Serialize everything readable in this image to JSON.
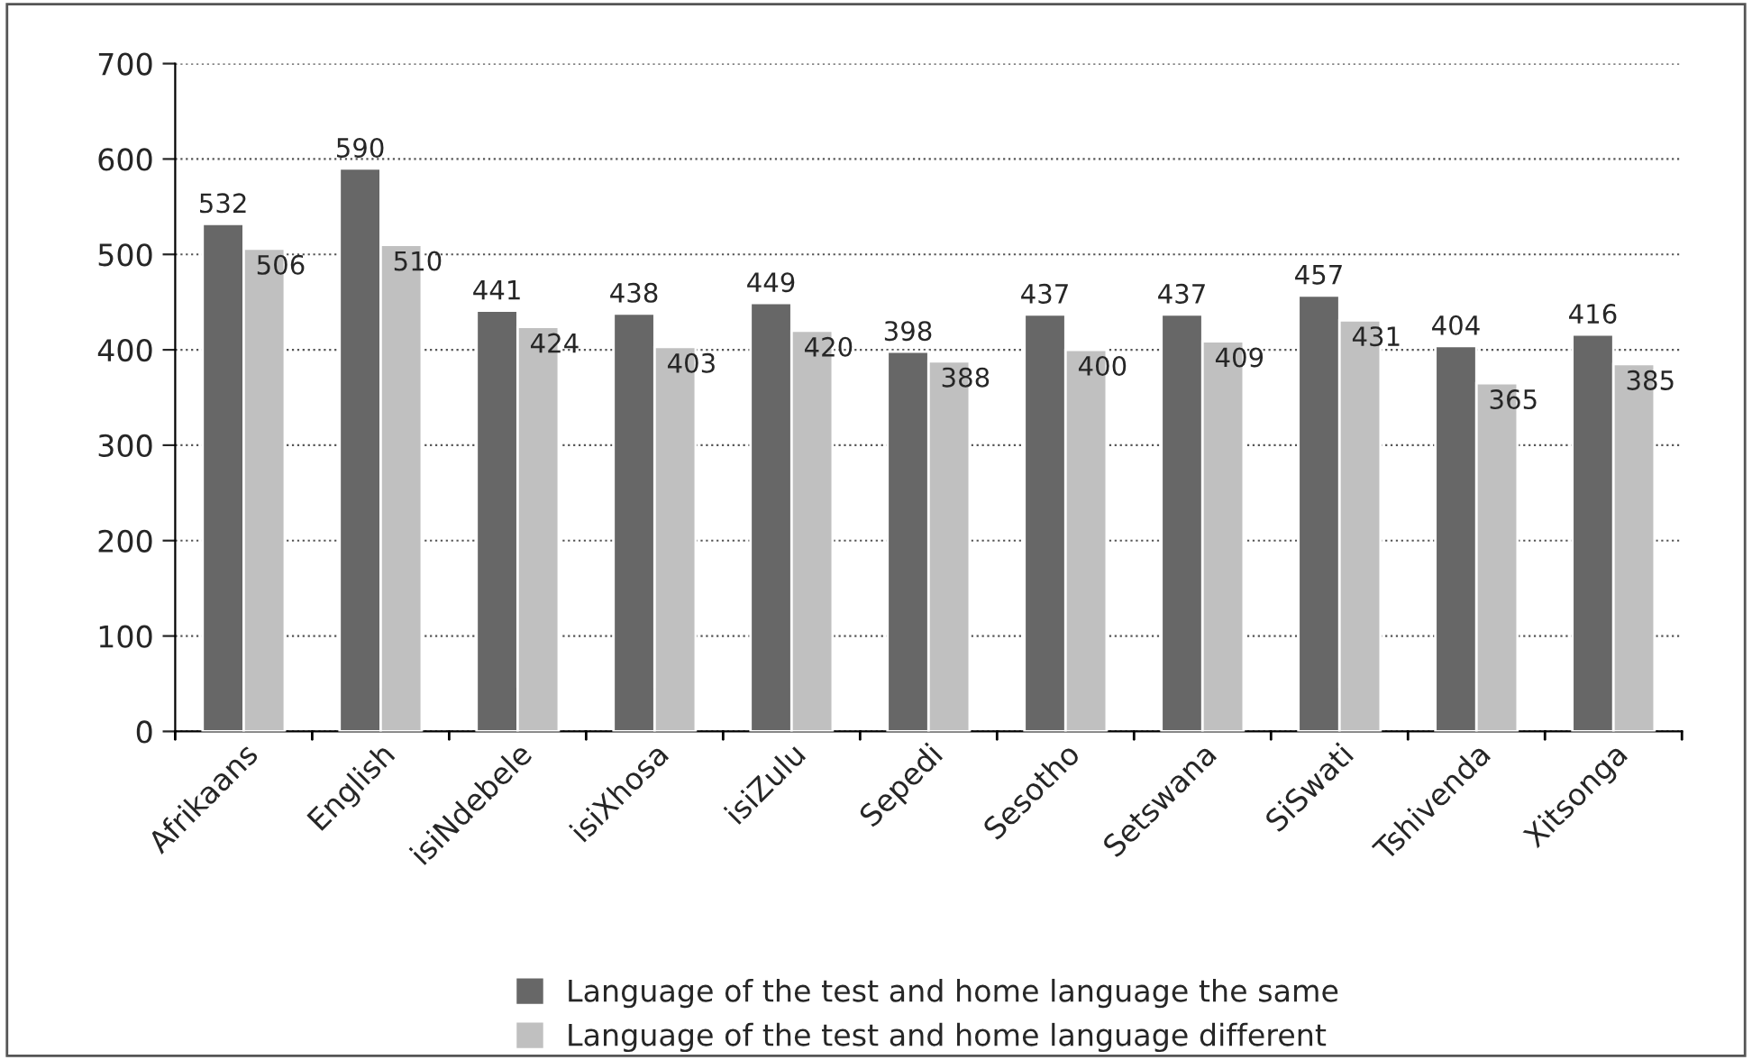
{
  "chart_data": {
    "type": "bar",
    "categories": [
      "Afrikaans",
      "English",
      "isiNdebele",
      "isiXhosa",
      "isiZulu",
      "Sepedi",
      "Sesotho",
      "Setswana",
      "SiSwati",
      "Tshivenda",
      "Xitsonga"
    ],
    "series": [
      {
        "name": "Language of the test and home language the same",
        "color": "#676767",
        "values": [
          532,
          590,
          441,
          438,
          449,
          398,
          437,
          437,
          457,
          404,
          416
        ]
      },
      {
        "name": "Language of the test and home language different",
        "color": "#c0c0c0",
        "values": [
          506,
          510,
          424,
          403,
          420,
          388,
          400,
          409,
          431,
          365,
          385
        ]
      }
    ],
    "ylim": [
      0,
      700
    ],
    "yticks": [
      0,
      100,
      200,
      300,
      400,
      500,
      600,
      700
    ],
    "grid": "y",
    "legend": "bottom",
    "data_labels": true
  }
}
